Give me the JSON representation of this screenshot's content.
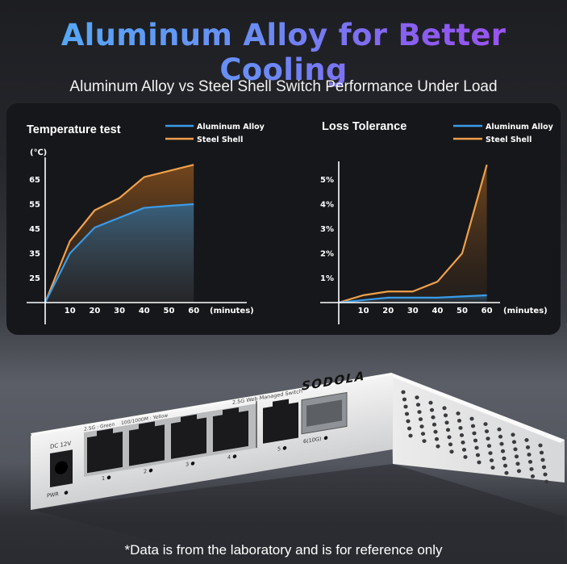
{
  "headline": "Aluminum Alloy for Better Cooling",
  "subtitle": "Aluminum Alloy vs Steel Shell Switch Performance Under Load",
  "footnote": "*Data is from the laboratory and is for reference only",
  "colors": {
    "aluminum": "#3a9be8",
    "steel": "#f0a04a"
  },
  "chart_data": [
    {
      "type": "area",
      "title": "Temperature test",
      "ylabel": "(℃)",
      "xlabel": "(minutes)",
      "x": [
        0,
        10,
        20,
        30,
        40,
        50,
        60
      ],
      "x_ticks": [
        "10",
        "20",
        "30",
        "40",
        "50",
        "60"
      ],
      "y_ticks": [
        "25",
        "35",
        "45",
        "55",
        "65"
      ],
      "ylim": [
        15,
        72
      ],
      "legend": "top-right",
      "grid": false,
      "series": [
        {
          "name": "Aluminum Alloy",
          "values": [
            15,
            35,
            45.5,
            49.5,
            53.5,
            54.3,
            55
          ]
        },
        {
          "name": "Steel Shell",
          "values": [
            15,
            40,
            52.5,
            57.5,
            66,
            68.5,
            71
          ]
        }
      ]
    },
    {
      "type": "area",
      "title": "Loss Tolerance",
      "xlabel": "(minutes)",
      "x": [
        0,
        10,
        20,
        30,
        40,
        50,
        60
      ],
      "x_ticks": [
        "10",
        "20",
        "30",
        "40",
        "50",
        "60"
      ],
      "y_ticks": [
        "1%",
        "2%",
        "3%",
        "4%",
        "5%"
      ],
      "ylim": [
        0,
        5.8
      ],
      "legend": "top-right",
      "grid": false,
      "series": [
        {
          "name": "Aluminum Alloy",
          "values": [
            0,
            0.1,
            0.2,
            0.2,
            0.2,
            0.25,
            0.3
          ]
        },
        {
          "name": "Steel Shell",
          "values": [
            0,
            0.3,
            0.45,
            0.45,
            0.85,
            2.0,
            5.6
          ]
        }
      ]
    }
  ],
  "product": {
    "brand": "SODOLA",
    "model_label": "2.5G Web Managed Switch",
    "legend_green": "2.5G : Green",
    "legend_yellow": "100/1000M : Yellow",
    "power_label": "DC 12V",
    "pwr_led": "PWR",
    "ports": [
      "1",
      "2",
      "3",
      "4",
      "5"
    ],
    "sfp_port": "6(10G)"
  }
}
